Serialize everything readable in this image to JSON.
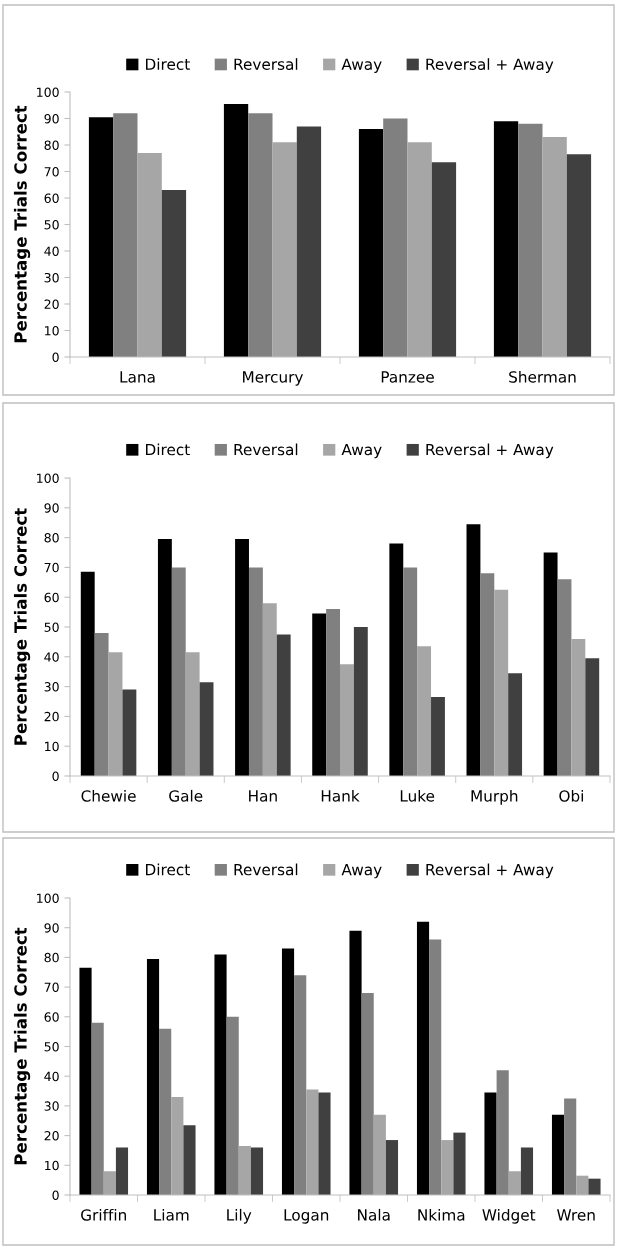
{
  "chart_data": [
    {
      "type": "bar",
      "ylabel": "Percentage Trials Correct",
      "categories": [
        "Lana",
        "Mercury",
        "Panzee",
        "Sherman"
      ],
      "ylim": [
        0,
        100
      ],
      "yticks": [
        0,
        10,
        20,
        30,
        40,
        50,
        60,
        70,
        80,
        90,
        100
      ],
      "grid": false,
      "legend": "top",
      "series": [
        {
          "name": "Direct",
          "color": "#000000",
          "values": [
            90.5,
            95.5,
            86,
            89
          ]
        },
        {
          "name": "Reversal",
          "color": "#808080",
          "values": [
            92,
            92,
            90,
            88
          ]
        },
        {
          "name": "Away",
          "color": "#a6a6a6",
          "values": [
            77,
            81,
            81,
            83
          ]
        },
        {
          "name": "Reversal + Away",
          "color": "#404040",
          "values": [
            63,
            87,
            73.5,
            76.5
          ]
        }
      ]
    },
    {
      "type": "bar",
      "ylabel": "Percentage Trials Correct",
      "categories": [
        "Chewie",
        "Gale",
        "Han",
        "Hank",
        "Luke",
        "Murph",
        "Obi"
      ],
      "ylim": [
        0,
        100
      ],
      "yticks": [
        0,
        10,
        20,
        30,
        40,
        50,
        60,
        70,
        80,
        90,
        100
      ],
      "grid": false,
      "legend": "top",
      "series": [
        {
          "name": "Direct",
          "color": "#000000",
          "values": [
            68.5,
            79.5,
            79.5,
            54.5,
            78,
            84.5,
            75
          ]
        },
        {
          "name": "Reversal",
          "color": "#808080",
          "values": [
            48,
            70,
            70,
            56,
            70,
            68,
            66
          ]
        },
        {
          "name": "Away",
          "color": "#a6a6a6",
          "values": [
            41.5,
            41.5,
            58,
            37.5,
            43.5,
            62.5,
            46
          ]
        },
        {
          "name": "Reversal + Away",
          "color": "#404040",
          "values": [
            29,
            31.5,
            47.5,
            50,
            26.5,
            34.5,
            39.5
          ]
        }
      ]
    },
    {
      "type": "bar",
      "ylabel": "Percentage Trials Correct",
      "categories": [
        "Griffin",
        "Liam",
        "Lily",
        "Logan",
        "Nala",
        "Nkima",
        "Widget",
        "Wren"
      ],
      "ylim": [
        0,
        100
      ],
      "yticks": [
        0,
        10,
        20,
        30,
        40,
        50,
        60,
        70,
        80,
        90,
        100
      ],
      "grid": false,
      "legend": "top",
      "series": [
        {
          "name": "Direct",
          "color": "#000000",
          "values": [
            76.5,
            79.5,
            81,
            83,
            89,
            92,
            34.5,
            27
          ]
        },
        {
          "name": "Reversal",
          "color": "#808080",
          "values": [
            58,
            56,
            60,
            74,
            68,
            86,
            42,
            32.5
          ]
        },
        {
          "name": "Away",
          "color": "#a6a6a6",
          "values": [
            8,
            33,
            16.5,
            35.5,
            27,
            18.5,
            8,
            6.5
          ]
        },
        {
          "name": "Reversal + Away",
          "color": "#404040",
          "values": [
            16,
            23.5,
            16,
            34.5,
            18.5,
            21,
            16,
            5.5
          ]
        }
      ]
    }
  ]
}
